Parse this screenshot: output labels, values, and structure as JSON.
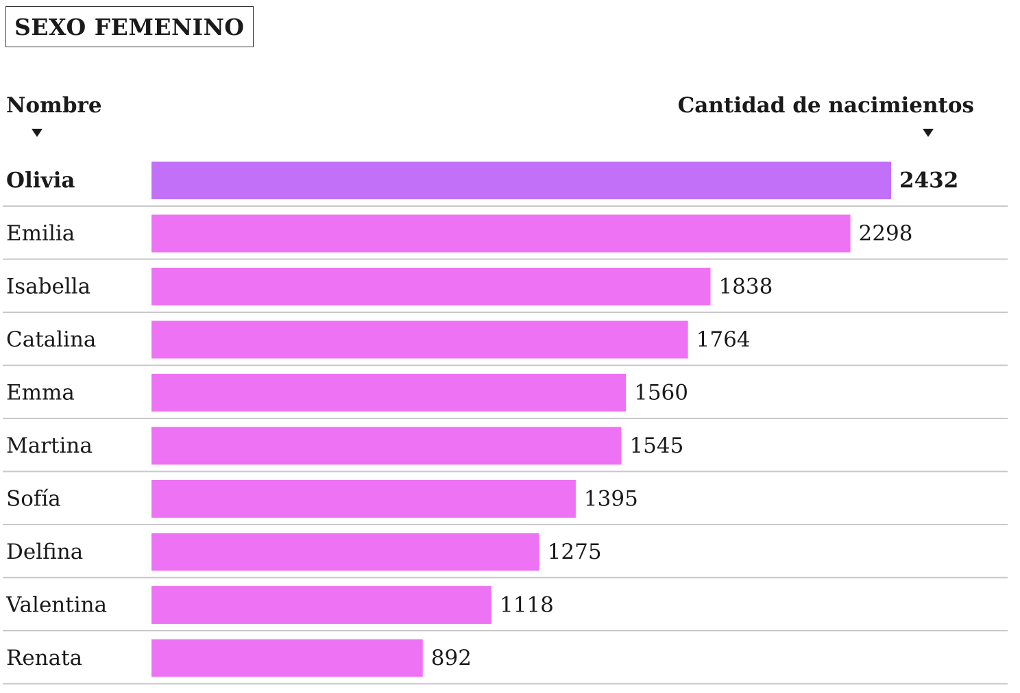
{
  "chart_data": {
    "type": "bar",
    "orientation": "horizontal",
    "title": "SEXO FEMENINO",
    "category_header": "Nombre",
    "value_header": "Cantidad de nacimientos",
    "categories": [
      "Olivia",
      "Emilia",
      "Isabella",
      "Catalina",
      "Emma",
      "Martina",
      "Sofía",
      "Delfina",
      "Valentina",
      "Renata"
    ],
    "values": [
      2432,
      2298,
      1838,
      1764,
      1560,
      1545,
      1395,
      1275,
      1118,
      892
    ],
    "highlight_index": 0,
    "colors": {
      "highlight": "#c170f7",
      "bar": "#ee72f4",
      "separator": "#c8c8c8",
      "text": "#1a1a1a"
    },
    "legend": "none",
    "grid": false
  }
}
